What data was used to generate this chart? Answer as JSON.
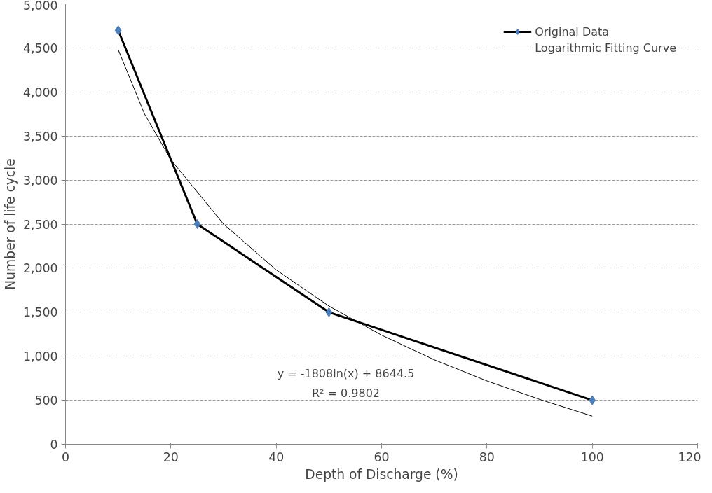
{
  "chart_data": {
    "type": "line",
    "xlabel": "Depth of Discharge (%)",
    "ylabel": "Number of life cycle",
    "xlim": [
      0,
      120
    ],
    "xticks": [
      0,
      20,
      40,
      60,
      80,
      100,
      120
    ],
    "ylim": [
      0,
      5000
    ],
    "yticks": [
      {
        "value": 0,
        "label": "0"
      },
      {
        "value": 500,
        "label": "500"
      },
      {
        "value": 1000,
        "label": "1,000"
      },
      {
        "value": 1500,
        "label": "1,500"
      },
      {
        "value": 2000,
        "label": "2,000"
      },
      {
        "value": 2500,
        "label": "2,500"
      },
      {
        "value": 3000,
        "label": "3,000"
      },
      {
        "value": 3500,
        "label": "3,500"
      },
      {
        "value": 4000,
        "label": "4,000"
      },
      {
        "value": 4500,
        "label": "4,500"
      },
      {
        "value": 5000,
        "label": "5,000"
      }
    ],
    "grid": "y",
    "legend": "top right",
    "series": [
      {
        "name": "Original Data",
        "color": "#000000",
        "colors": [
          "#4a7ebb",
          "#4a7ebb",
          "#4a7ebb",
          "#4a7ebb"
        ],
        "marker": "diamond",
        "x": [
          10,
          25,
          50,
          100
        ],
        "values": [
          4700,
          2500,
          1500,
          500
        ]
      },
      {
        "name": "Logarithmic Fitting Curve",
        "color": "#000000",
        "marker": "none",
        "x": [
          10,
          15,
          20,
          30,
          40,
          50,
          60,
          70,
          80,
          90,
          100
        ],
        "values": [
          4480,
          3750,
          3230,
          2500,
          1980,
          1570,
          1240,
          960,
          720,
          510,
          320
        ]
      }
    ],
    "annotations": [
      "y = -1808ln(x) + 8644.5",
      "R² = 0.9802"
    ]
  }
}
